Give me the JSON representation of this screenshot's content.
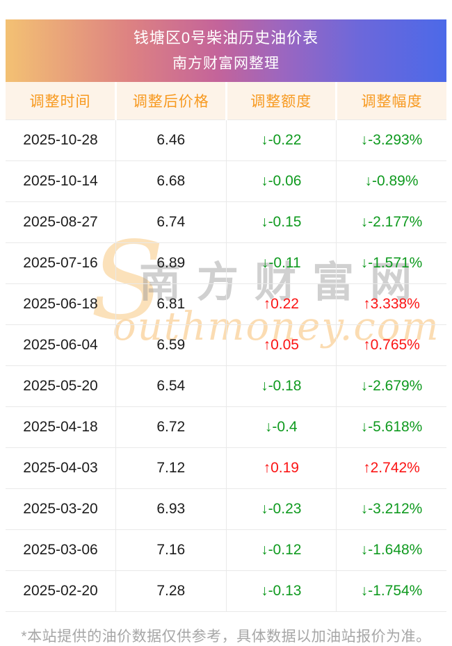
{
  "header": {
    "title": "钱塘区0号柴油历史油价表",
    "subtitle": "南方财富网整理"
  },
  "table": {
    "columns": [
      "调整时间",
      "调整后价格",
      "调整额度",
      "调整幅度"
    ],
    "rows": [
      {
        "date": "2025-10-28",
        "price": "6.46",
        "change": "↓-0.22",
        "pct": "↓-3.293%",
        "trend": "down"
      },
      {
        "date": "2025-10-14",
        "price": "6.68",
        "change": "↓-0.06",
        "pct": "↓-0.89%",
        "trend": "down"
      },
      {
        "date": "2025-08-27",
        "price": "6.74",
        "change": "↓-0.15",
        "pct": "↓-2.177%",
        "trend": "down"
      },
      {
        "date": "2025-07-16",
        "price": "6.89",
        "change": "↓-0.11",
        "pct": "↓-1.571%",
        "trend": "down"
      },
      {
        "date": "2025-06-18",
        "price": "6.81",
        "change": "↑0.22",
        "pct": "↑3.338%",
        "trend": "up"
      },
      {
        "date": "2025-06-04",
        "price": "6.59",
        "change": "↑0.05",
        "pct": "↑0.765%",
        "trend": "up"
      },
      {
        "date": "2025-05-20",
        "price": "6.54",
        "change": "↓-0.18",
        "pct": "↓-2.679%",
        "trend": "down"
      },
      {
        "date": "2025-04-18",
        "price": "6.72",
        "change": "↓-0.4",
        "pct": "↓-5.618%",
        "trend": "down"
      },
      {
        "date": "2025-04-03",
        "price": "7.12",
        "change": "↑0.19",
        "pct": "↑2.742%",
        "trend": "up"
      },
      {
        "date": "2025-03-20",
        "price": "6.93",
        "change": "↓-0.23",
        "pct": "↓-3.212%",
        "trend": "down"
      },
      {
        "date": "2025-03-06",
        "price": "7.16",
        "change": "↓-0.12",
        "pct": "↓-1.648%",
        "trend": "down"
      },
      {
        "date": "2025-02-20",
        "price": "7.28",
        "change": "↓-0.13",
        "pct": "↓-1.754%",
        "trend": "down"
      }
    ]
  },
  "watermark": {
    "initial": "S",
    "brand_cn": "南方财富网",
    "brand_en": "outhmoney.com"
  },
  "footer": {
    "note": "*本站提供的油价数据仅供参考，具体数据以加油站报价为准。"
  },
  "colors": {
    "up": "#fb1414",
    "down": "#0f9a1f",
    "header_text": "#f7991f",
    "banner_gradient": [
      "#f3c173",
      "#dd8282",
      "#c4649a",
      "#9b66c0",
      "#6d68da",
      "#4c69e8"
    ]
  }
}
